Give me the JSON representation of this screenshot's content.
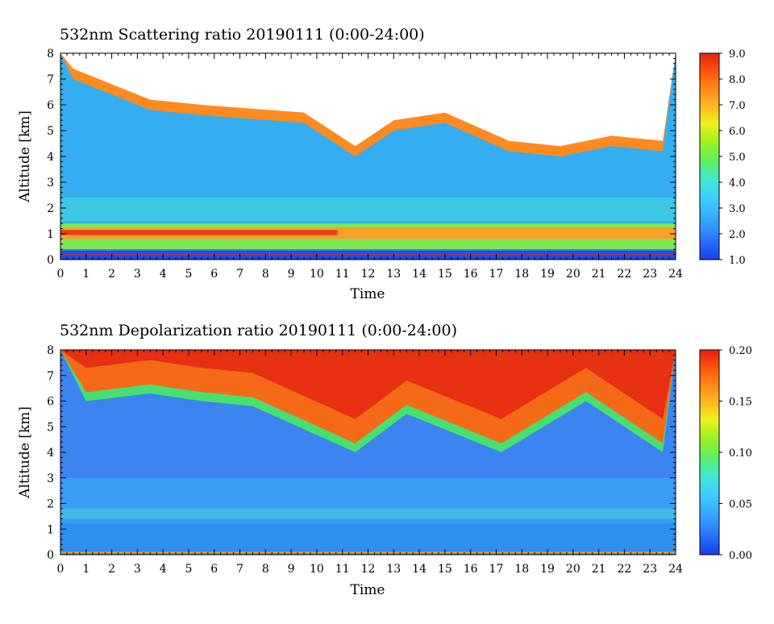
{
  "chart_data": [
    {
      "type": "heatmap",
      "title": "532nm Scattering ratio  20190111 (0:00-24:00)",
      "xlabel": "Time",
      "ylabel": "Altitude [km]",
      "xlim": [
        0,
        24
      ],
      "ylim": [
        0,
        8
      ],
      "x_ticks": [
        "0",
        "1",
        "2",
        "3",
        "4",
        "5",
        "6",
        "7",
        "8",
        "9",
        "10",
        "11",
        "12",
        "13",
        "14",
        "15",
        "16",
        "17",
        "18",
        "19",
        "20",
        "21",
        "22",
        "23",
        "24"
      ],
      "y_ticks": [
        "0",
        "1",
        "2",
        "3",
        "4",
        "5",
        "6",
        "7",
        "8"
      ],
      "colorbar": {
        "min": 1.0,
        "max": 9.0,
        "ticks": [
          "1.0",
          "2.0",
          "3.0",
          "4.0",
          "5.0",
          "6.0",
          "7.0",
          "8.0",
          "9.0"
        ]
      },
      "features": {
        "aerosol_layer_km": [
          0.4,
          1.4
        ],
        "cloud_layer_top_km": 8.0,
        "cloud_base_km_approx": [
          {
            "time": 0.5,
            "base": 7.0
          },
          {
            "time": 3.5,
            "base": 5.8
          },
          {
            "time": 5.5,
            "base": 5.6
          },
          {
            "time": 9.5,
            "base": 5.3
          },
          {
            "time": 11.5,
            "base": 4.0
          },
          {
            "time": 13.0,
            "base": 5.0
          },
          {
            "time": 15.0,
            "base": 5.3
          },
          {
            "time": 17.5,
            "base": 4.2
          },
          {
            "time": 19.5,
            "base": 4.0
          },
          {
            "time": 21.5,
            "base": 4.4
          },
          {
            "time": 23.5,
            "base": 4.2
          }
        ]
      }
    },
    {
      "type": "heatmap",
      "title": "532nm Depolarization ratio  20190111 (0:00-24:00)",
      "xlabel": "Time",
      "ylabel": "Altitude [km]",
      "xlim": [
        0,
        24
      ],
      "ylim": [
        0,
        8
      ],
      "x_ticks": [
        "0",
        "1",
        "2",
        "3",
        "4",
        "5",
        "6",
        "7",
        "8",
        "9",
        "10",
        "11",
        "12",
        "13",
        "14",
        "15",
        "16",
        "17",
        "18",
        "19",
        "20",
        "21",
        "22",
        "23",
        "24"
      ],
      "y_ticks": [
        "0",
        "1",
        "2",
        "3",
        "4",
        "5",
        "6",
        "7",
        "8"
      ],
      "colorbar": {
        "min": 0.0,
        "max": 0.2,
        "ticks": [
          "0.00",
          "0.05",
          "0.10",
          "0.15",
          "0.20"
        ]
      },
      "features": {
        "ice_cloud_base_km_approx": [
          {
            "time": 1.0,
            "base": 6.0
          },
          {
            "time": 3.5,
            "base": 6.3
          },
          {
            "time": 5.5,
            "base": 6.0
          },
          {
            "time": 7.5,
            "base": 5.8
          },
          {
            "time": 11.5,
            "base": 4.0
          },
          {
            "time": 13.5,
            "base": 5.5
          },
          {
            "time": 17.2,
            "base": 4.0
          },
          {
            "time": 20.5,
            "base": 6.0
          },
          {
            "time": 23.5,
            "base": 4.0
          }
        ],
        "low_depol_layer_km": [
          1.4,
          1.8
        ]
      }
    }
  ]
}
